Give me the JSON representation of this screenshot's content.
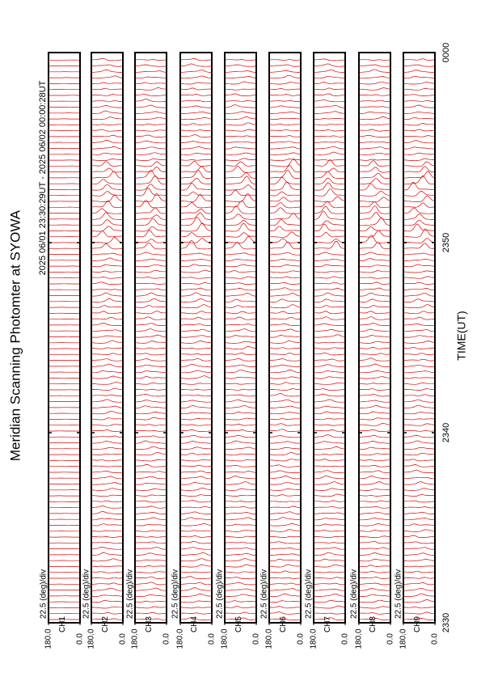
{
  "chart_data": {
    "type": "stacked-profile",
    "title": "Meridian Scanning Photomter at SYOWA",
    "subtitle": "2025 06/01 23:30:29UT - 2025 06/02 00:00:28UT",
    "x_label": "TIME(UT)",
    "xlim": [
      0,
      30
    ],
    "xticks": [
      {
        "value": 0,
        "label": "2330"
      },
      {
        "value": 10,
        "label": "2340"
      },
      {
        "value": 20,
        "label": "2350"
      },
      {
        "value": 30,
        "label": "0000"
      }
    ],
    "ylim": [
      0,
      180
    ],
    "yticks": [
      {
        "value": 180,
        "label": "180.0"
      },
      {
        "value": 0,
        "label": "0.0"
      }
    ],
    "scale_label": "22.5 (deg)/div",
    "color": "#e00000",
    "panels": [
      {
        "name": "CH1"
      },
      {
        "name": "CH2"
      },
      {
        "name": "CH3"
      },
      {
        "name": "CH4"
      },
      {
        "name": "CH5"
      },
      {
        "name": "CH6"
      },
      {
        "name": "CH7"
      },
      {
        "name": "CH8"
      },
      {
        "name": "CH9"
      }
    ]
  }
}
